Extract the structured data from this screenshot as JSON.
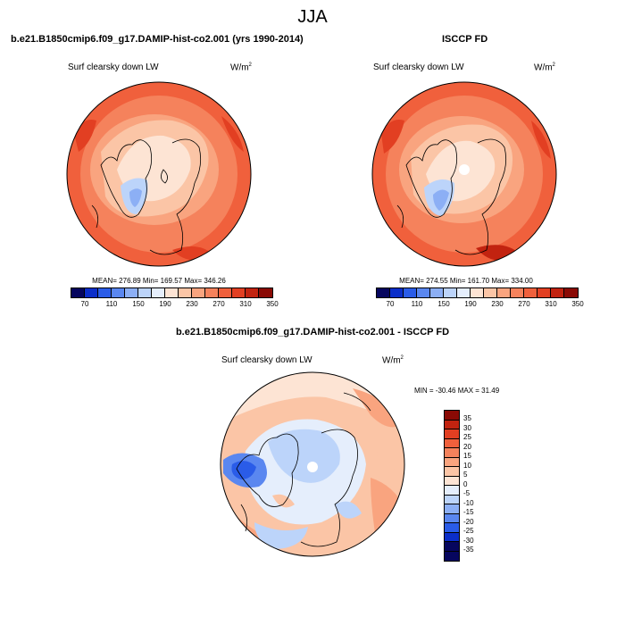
{
  "title": "JJA",
  "panels": [
    {
      "title": "b.e21.B1850cmip6.f09_g17.DAMIP-hist-co2.001 (yrs 1990-2014)",
      "variable": "Surf clearsky down LW",
      "units": "W/m",
      "units_exp": "2",
      "stats": "MEAN= 276.89  Min= 169.57  Max= 346.26",
      "colorbar_labels": [
        "70",
        "110",
        "150",
        "190",
        "230",
        "270",
        "310",
        "350"
      ]
    },
    {
      "title": "ISCCP FD",
      "variable": "Surf clearsky down LW",
      "units": "W/m",
      "units_exp": "2",
      "stats": "MEAN= 274.55  Min= 161.70  Max= 334.00",
      "colorbar_labels": [
        "70",
        "110",
        "150",
        "190",
        "230",
        "270",
        "310",
        "350"
      ]
    },
    {
      "title": "b.e21.B1850cmip6.f09_g17.DAMIP-hist-co2.001 - ISCCP FD",
      "variable": "Surf clearsky down LW",
      "units": "W/m",
      "units_exp": "2",
      "stats": "MIN = -30.46  MAX =  31.49",
      "colorbar_labels": [
        "35",
        "30",
        "25",
        "20",
        "15",
        "10",
        "5",
        "0",
        "-5",
        "-10",
        "-15",
        "-20",
        "-25",
        "-30",
        "-35"
      ]
    }
  ],
  "colors": {
    "abs_scale": [
      "#06065e",
      "#0b2ec9",
      "#2a5ce8",
      "#5a87f0",
      "#8caff5",
      "#bcd4fa",
      "#e5eefc",
      "#fde4d4",
      "#fbc5a6",
      "#f9a47f",
      "#f5825c",
      "#f0603c",
      "#e23f22",
      "#c22310",
      "#8a0a05"
    ],
    "diff_scale": [
      "#8a0a05",
      "#c22310",
      "#e23f22",
      "#f0603c",
      "#f5825c",
      "#f9a47f",
      "#fbc5a6",
      "#fde4d4",
      "#e5eefc",
      "#bcd4fa",
      "#8caff5",
      "#5a87f0",
      "#2a5ce8",
      "#0b2ec9",
      "#06065e"
    ]
  }
}
